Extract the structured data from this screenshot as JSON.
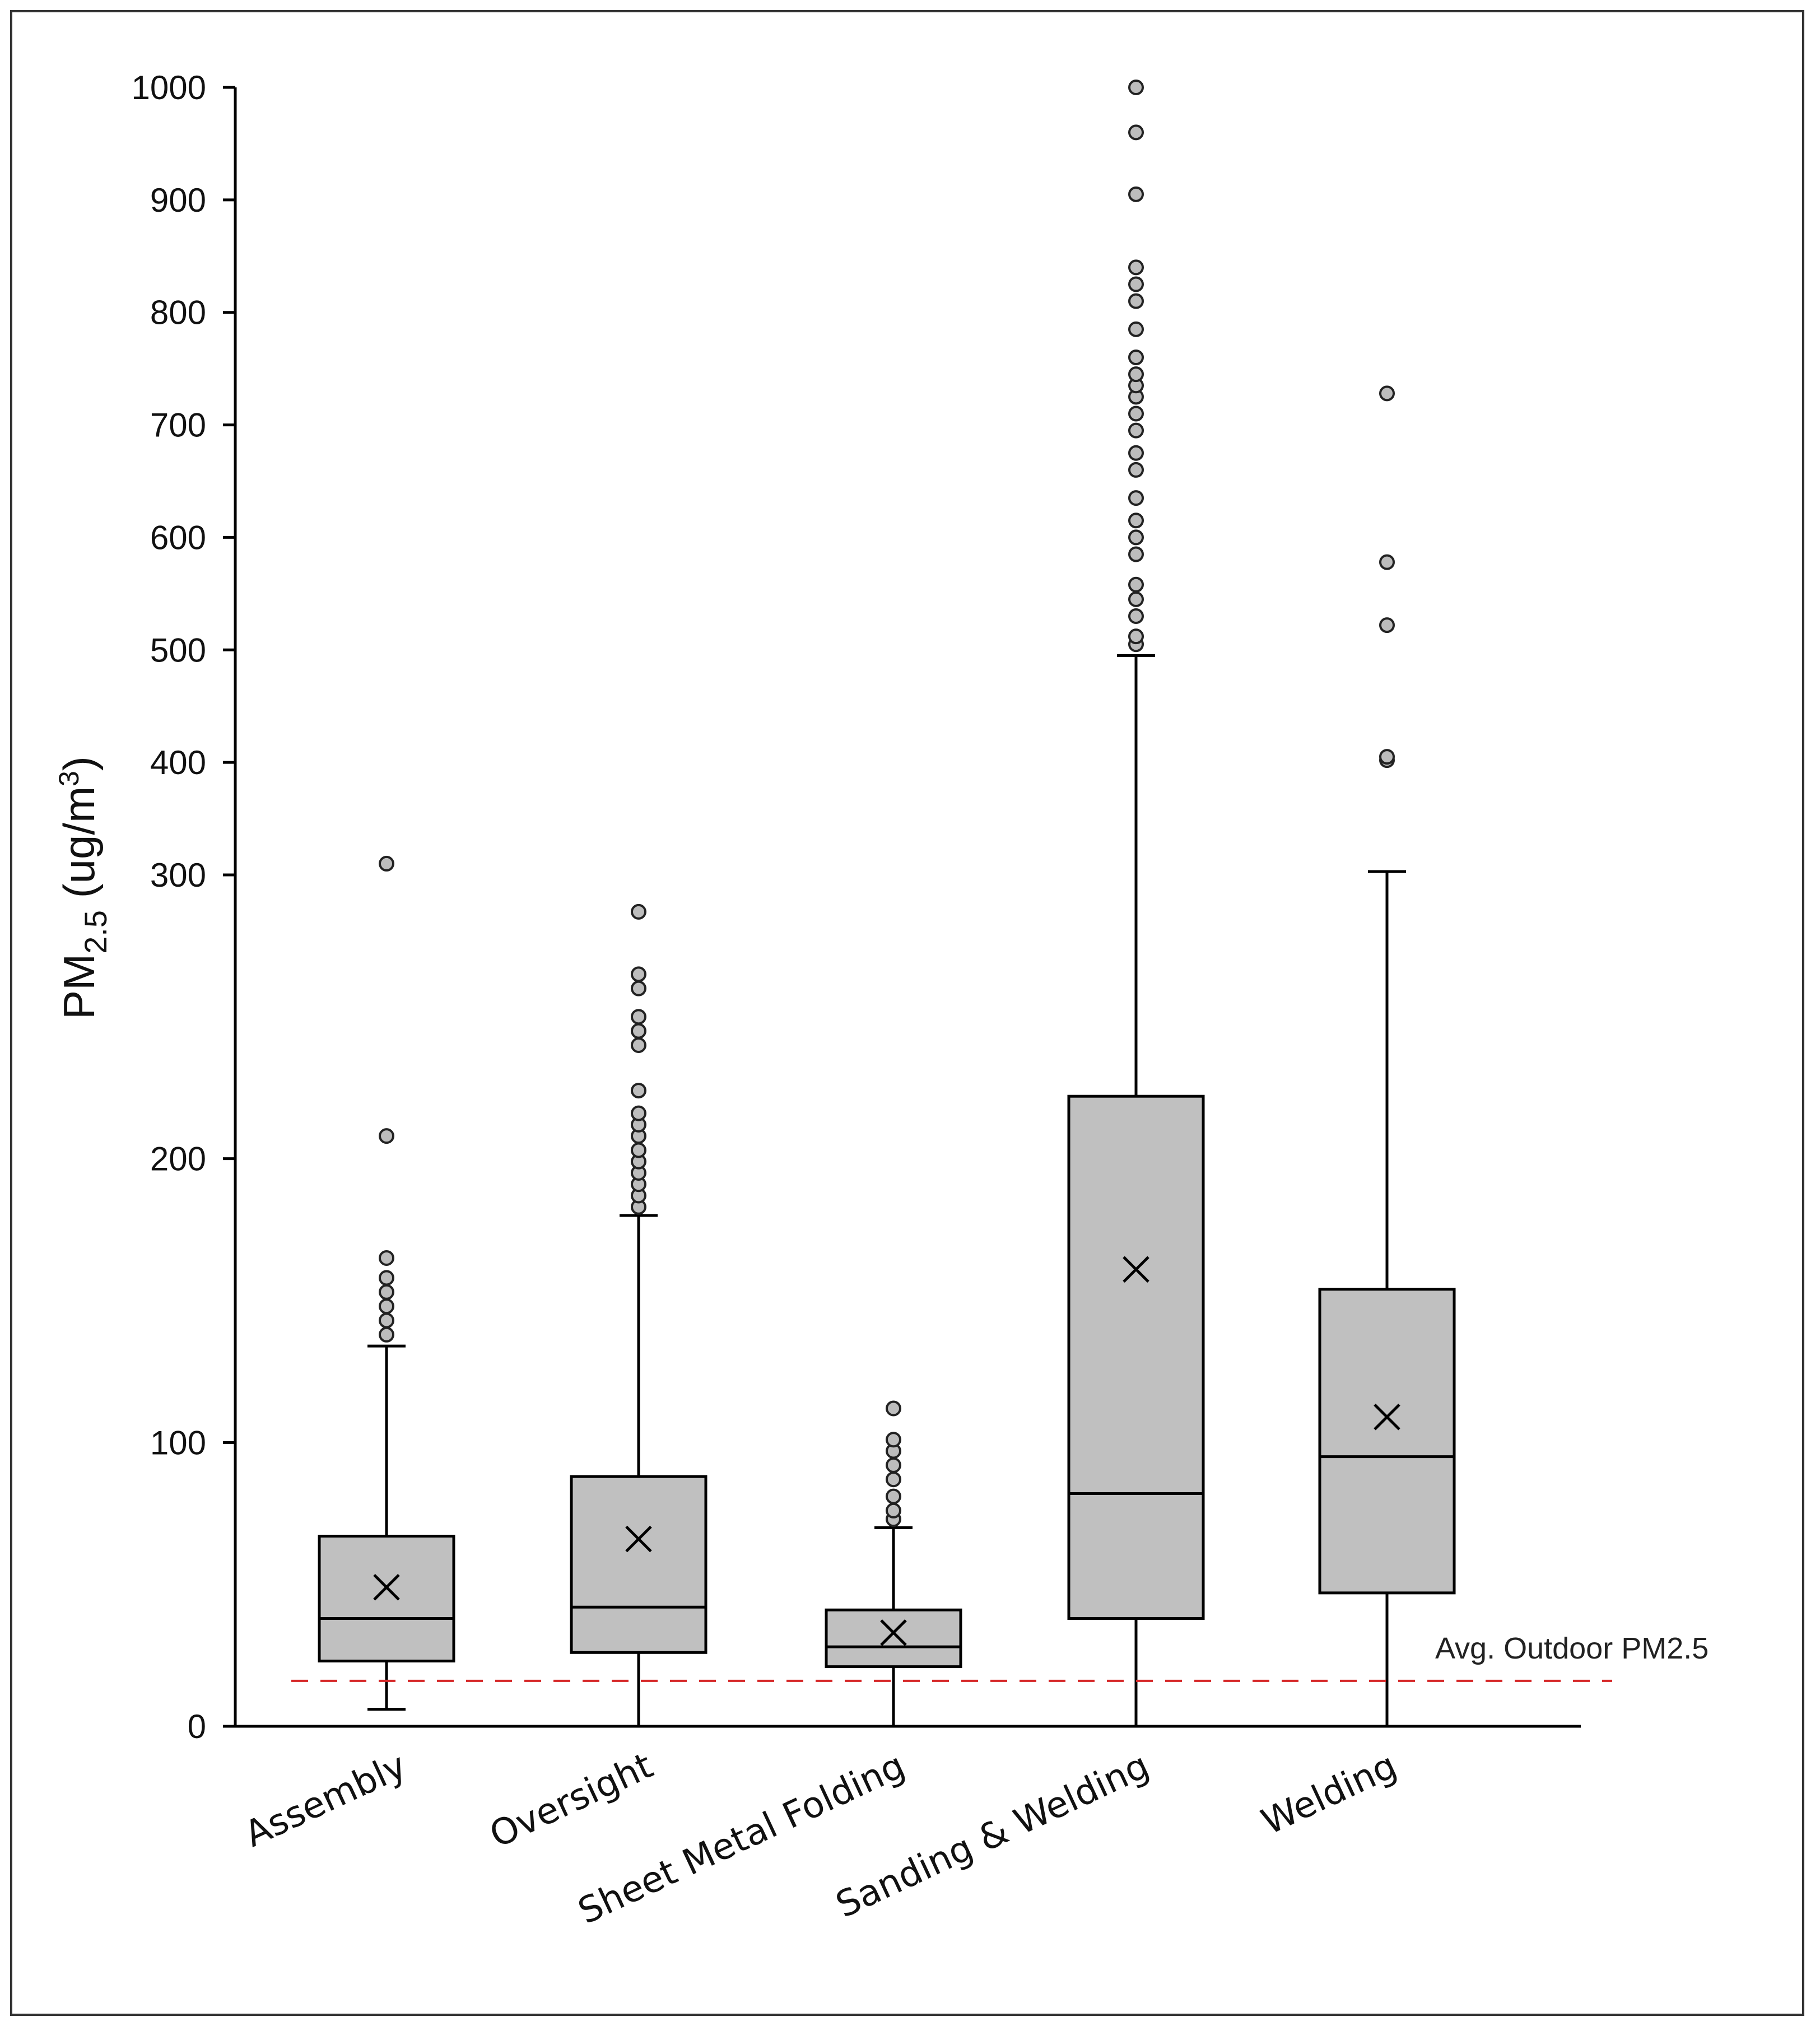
{
  "chart_data": {
    "type": "box",
    "title": "",
    "ylabel": {
      "main": "PM",
      "sub": "2.5",
      "units_pre": " (ug/m",
      "units_sup": "3",
      "units_post": ")"
    },
    "xlabel": "",
    "y_scale": "piecewise: linear 0-300 stretched, compressed 300-1000",
    "y_ticks": [
      0,
      100,
      200,
      300,
      400,
      500,
      600,
      700,
      800,
      900,
      1000
    ],
    "ylim": [
      0,
      1000
    ],
    "reference_line": {
      "value": 16,
      "label": "Avg. Outdoor PM2.5",
      "color": "#d62728",
      "style": "dashed"
    },
    "categories": [
      "Assembly",
      "Oversight",
      "Sheet Metal Folding",
      "Sanding & Welding",
      "Welding"
    ],
    "boxes": [
      {
        "name": "Assembly",
        "whisker_low": 6,
        "q1": 23,
        "median": 38,
        "q3": 67,
        "whisker_high": 134,
        "mean": 49,
        "outliers": [
          138,
          143,
          148,
          153,
          158,
          165,
          208,
          310
        ]
      },
      {
        "name": "Oversight",
        "whisker_low": 0,
        "q1": 26,
        "median": 42,
        "q3": 88,
        "whisker_high": 180,
        "mean": 66,
        "outliers": [
          183,
          187,
          191,
          195,
          199,
          203,
          208,
          212,
          216,
          224,
          240,
          245,
          250,
          260,
          265,
          287
        ]
      },
      {
        "name": "Sheet Metal Folding",
        "whisker_low": 0,
        "q1": 21,
        "median": 28,
        "q3": 41,
        "whisker_high": 70,
        "mean": 33,
        "outliers": [
          73,
          76,
          81,
          87,
          92,
          97,
          101,
          112
        ]
      },
      {
        "name": "Sanding & Welding",
        "whisker_low": 0,
        "q1": 38,
        "median": 82,
        "q3": 222,
        "whisker_high": 495,
        "mean": 161,
        "outliers": [
          505,
          512,
          530,
          545,
          558,
          585,
          600,
          615,
          635,
          660,
          675,
          695,
          710,
          725,
          735,
          745,
          760,
          785,
          810,
          825,
          840,
          905,
          960,
          1000
        ]
      },
      {
        "name": "Welding",
        "whisker_low": 0,
        "q1": 47,
        "median": 95,
        "q3": 154,
        "whisker_high": 303,
        "mean": 109,
        "outliers": [
          402,
          405,
          522,
          578,
          728
        ]
      }
    ],
    "colors": {
      "box_fill": "#c0c0c0",
      "stroke": "#000000",
      "outlier_fill": "#bdbdbd"
    }
  }
}
